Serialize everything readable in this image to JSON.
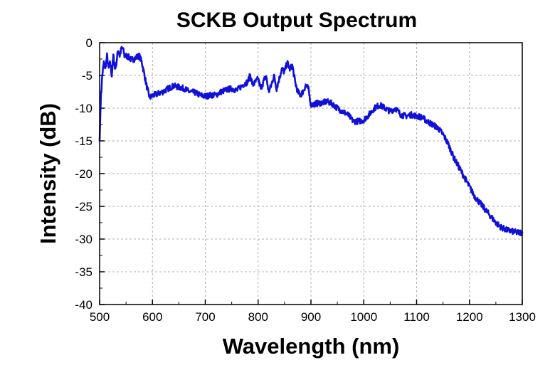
{
  "chart_data": {
    "type": "line",
    "title": "SCKB Output Spectrum",
    "xlabel": "Wavelength (nm)",
    "ylabel": "Intensity (dB)",
    "xlim": [
      500,
      1300
    ],
    "ylim": [
      -40,
      0
    ],
    "x_ticks": [
      500,
      600,
      700,
      800,
      900,
      1000,
      1100,
      1200,
      1300
    ],
    "y_ticks": [
      0,
      -5,
      -10,
      -15,
      -20,
      -25,
      -30,
      -35,
      -40
    ],
    "grid": true,
    "legend": "none",
    "series": [
      {
        "color": "#1010d8",
        "points": [
          [
            500,
            -15
          ],
          [
            502,
            -9
          ],
          [
            505,
            -5
          ],
          [
            508,
            -3
          ],
          [
            511,
            -4
          ],
          [
            514,
            -2
          ],
          [
            517,
            -4
          ],
          [
            520,
            -3
          ],
          [
            523,
            -5
          ],
          [
            526,
            -2
          ],
          [
            529,
            -4
          ],
          [
            532,
            -3
          ],
          [
            535,
            -1
          ],
          [
            538,
            -2
          ],
          [
            541,
            -1
          ],
          [
            544,
            -0.8
          ],
          [
            547,
            -2
          ],
          [
            550,
            -2
          ],
          [
            555,
            -2.2
          ],
          [
            560,
            -2.6
          ],
          [
            565,
            -2.5
          ],
          [
            570,
            -2.2
          ],
          [
            575,
            -2
          ],
          [
            580,
            -3
          ],
          [
            585,
            -5
          ],
          [
            590,
            -7
          ],
          [
            595,
            -8.4
          ],
          [
            600,
            -8.1
          ],
          [
            610,
            -7.8
          ],
          [
            620,
            -7.5
          ],
          [
            630,
            -7
          ],
          [
            640,
            -6.6
          ],
          [
            650,
            -6.8
          ],
          [
            660,
            -7
          ],
          [
            670,
            -7.5
          ],
          [
            680,
            -7.6
          ],
          [
            690,
            -8
          ],
          [
            700,
            -8.2
          ],
          [
            710,
            -8
          ],
          [
            720,
            -8
          ],
          [
            730,
            -7.5
          ],
          [
            740,
            -7.2
          ],
          [
            750,
            -7
          ],
          [
            760,
            -7.3
          ],
          [
            770,
            -6.5
          ],
          [
            780,
            -6
          ],
          [
            785,
            -5
          ],
          [
            790,
            -6.5
          ],
          [
            800,
            -5.5
          ],
          [
            805,
            -7
          ],
          [
            810,
            -6
          ],
          [
            815,
            -5
          ],
          [
            820,
            -7.5
          ],
          [
            825,
            -6.5
          ],
          [
            830,
            -5
          ],
          [
            835,
            -7
          ],
          [
            840,
            -5.5
          ],
          [
            845,
            -4
          ],
          [
            850,
            -4.5
          ],
          [
            855,
            -3
          ],
          [
            860,
            -4
          ],
          [
            865,
            -3.5
          ],
          [
            870,
            -6
          ],
          [
            875,
            -7.5
          ],
          [
            880,
            -8
          ],
          [
            885,
            -7.5
          ],
          [
            890,
            -6.5
          ],
          [
            895,
            -7
          ],
          [
            900,
            -9.5
          ],
          [
            910,
            -9.3
          ],
          [
            920,
            -9.2
          ],
          [
            930,
            -9
          ],
          [
            940,
            -9.3
          ],
          [
            950,
            -10
          ],
          [
            960,
            -10.5
          ],
          [
            970,
            -11
          ],
          [
            980,
            -12
          ],
          [
            990,
            -12
          ],
          [
            1000,
            -11.8
          ],
          [
            1010,
            -11
          ],
          [
            1020,
            -10
          ],
          [
            1030,
            -9.5
          ],
          [
            1040,
            -10
          ],
          [
            1050,
            -10.5
          ],
          [
            1060,
            -10
          ],
          [
            1070,
            -11
          ],
          [
            1080,
            -11.2
          ],
          [
            1090,
            -11
          ],
          [
            1100,
            -11.2
          ],
          [
            1110,
            -11.4
          ],
          [
            1120,
            -12
          ],
          [
            1130,
            -12.5
          ],
          [
            1140,
            -13
          ],
          [
            1150,
            -14
          ],
          [
            1160,
            -15.5
          ],
          [
            1170,
            -17.5
          ],
          [
            1180,
            -19
          ],
          [
            1190,
            -20.5
          ],
          [
            1200,
            -22
          ],
          [
            1210,
            -23.5
          ],
          [
            1220,
            -24.5
          ],
          [
            1230,
            -25.5
          ],
          [
            1240,
            -26.5
          ],
          [
            1250,
            -27.5
          ],
          [
            1260,
            -28.2
          ],
          [
            1270,
            -28.6
          ],
          [
            1280,
            -28.8
          ],
          [
            1290,
            -29
          ],
          [
            1300,
            -29
          ]
        ]
      }
    ]
  }
}
